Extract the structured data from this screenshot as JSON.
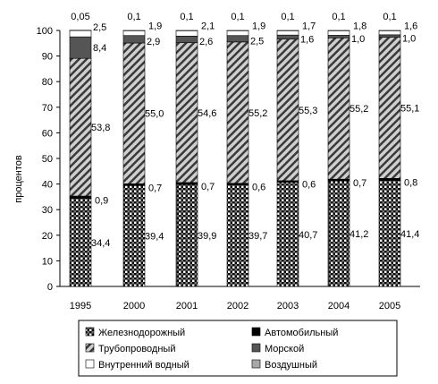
{
  "chart_data": {
    "type": "bar",
    "stacked": true,
    "categories": [
      "1995",
      "2000",
      "2001",
      "2002",
      "2003",
      "2004",
      "2005"
    ],
    "ylabel": "процентов",
    "ylim": [
      0,
      100
    ],
    "yticks": [
      0,
      10,
      20,
      30,
      40,
      50,
      60,
      70,
      80,
      90,
      100
    ],
    "series": [
      {
        "name": "Железнодорожный",
        "values": [
          34.4,
          39.4,
          39.9,
          39.7,
          40.7,
          41.2,
          41.4
        ],
        "labels": [
          "34,4",
          "39,4",
          "39,9",
          "39,7",
          "40,7",
          "41,2",
          "41,4"
        ],
        "pattern": "checker"
      },
      {
        "name": "Автомобильный",
        "values": [
          0.9,
          0.7,
          0.7,
          0.6,
          0.6,
          0.7,
          0.8
        ],
        "labels": [
          "0,9",
          "0,7",
          "0,7",
          "0,6",
          "0,6",
          "0,7",
          "0,8"
        ],
        "pattern": "solid-black"
      },
      {
        "name": "Трубопроводный",
        "values": [
          53.8,
          55.0,
          54.6,
          55.2,
          55.3,
          55.2,
          55.1
        ],
        "labels": [
          "53,8",
          "55,0",
          "54,6",
          "55,2",
          "55,3",
          "55,2",
          "55,1"
        ],
        "pattern": "diagonal"
      },
      {
        "name": "Морской",
        "values": [
          8.4,
          2.9,
          2.6,
          2.5,
          1.6,
          1.0,
          1.0
        ],
        "labels": [
          "8,4",
          "2,9",
          "2,6",
          "2,5",
          "1,6",
          "1,0",
          "1,0"
        ],
        "pattern": "dark-gray"
      },
      {
        "name": "Внутренний водный",
        "values": [
          2.5,
          1.9,
          2.1,
          1.9,
          1.7,
          1.8,
          1.6
        ],
        "labels": [
          "2,5",
          "1,9",
          "2,1",
          "1,9",
          "1,7",
          "1,8",
          "1,6"
        ],
        "pattern": "white"
      },
      {
        "name": "Воздушный",
        "values": [
          0.05,
          0.1,
          0.1,
          0.1,
          0.1,
          0.1,
          0.1
        ],
        "labels": [
          "0,05",
          "0,1",
          "0,1",
          "0,1",
          "0,1",
          "0,1",
          "0,1"
        ],
        "pattern": "light-gray"
      }
    ],
    "grid": false,
    "legend_position": "bottom",
    "colors": {
      "solid_black": "#000000",
      "dark_gray": "#555555",
      "light_gray": "#a8a8a8",
      "white": "#ffffff"
    }
  }
}
